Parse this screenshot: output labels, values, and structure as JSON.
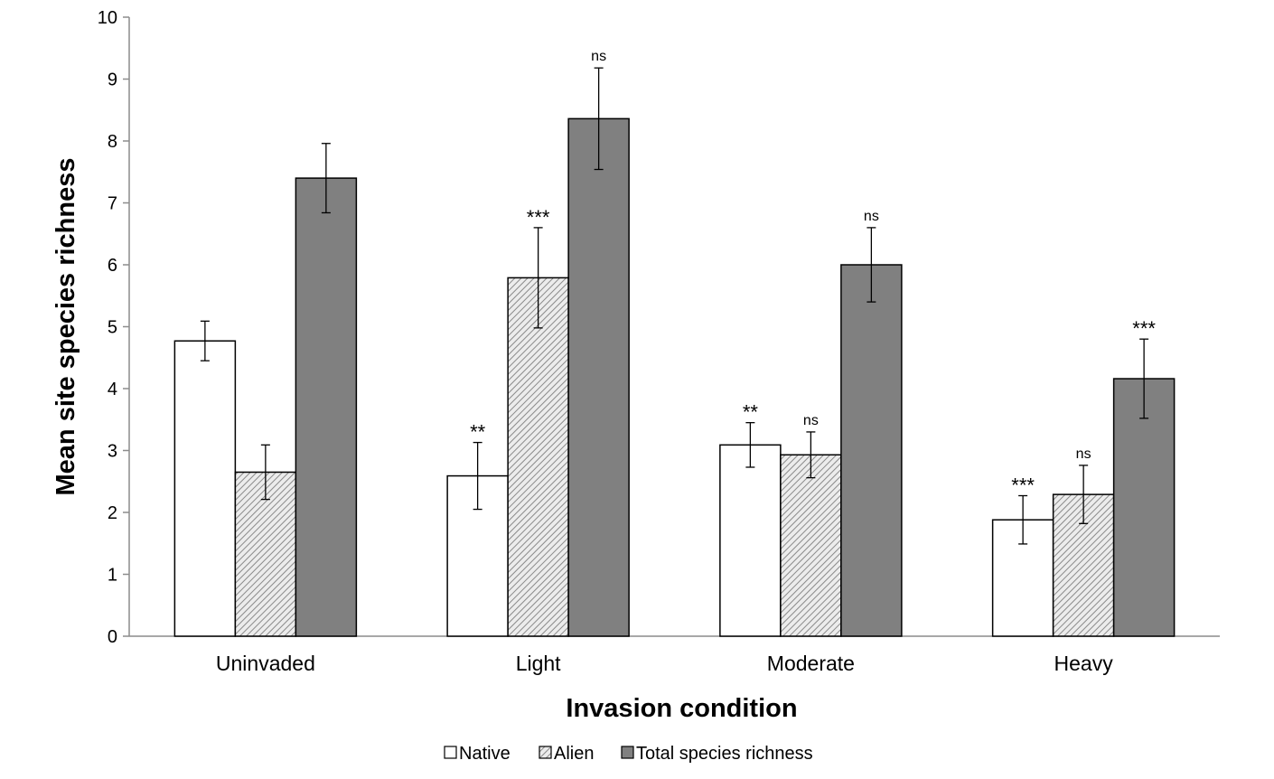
{
  "chart_data": {
    "type": "bar",
    "title": "",
    "xlabel": "Invasion condition",
    "ylabel": "Mean site species richness",
    "ylim": [
      0,
      10
    ],
    "yticks": [
      0,
      1,
      2,
      3,
      4,
      5,
      6,
      7,
      8,
      9,
      10
    ],
    "categories": [
      "Uninvaded",
      "Light",
      "Moderate",
      "Heavy"
    ],
    "series": [
      {
        "name": "Native",
        "color": "#ffffff",
        "pattern": "none",
        "values": [
          4.77,
          2.59,
          3.09,
          1.88
        ],
        "error": [
          0.32,
          0.54,
          0.36,
          0.39
        ],
        "significance": [
          "",
          "**",
          "**",
          "***"
        ]
      },
      {
        "name": "Alien",
        "color": "#d9d9d9",
        "pattern": "diagonal-hatch",
        "values": [
          2.65,
          5.79,
          2.93,
          2.29
        ],
        "error": [
          0.44,
          0.81,
          0.37,
          0.47
        ],
        "significance": [
          "",
          "***",
          "ns",
          "ns"
        ]
      },
      {
        "name": "Total species richness",
        "color": "#808080",
        "pattern": "none",
        "values": [
          7.4,
          8.36,
          6.0,
          4.16
        ],
        "error": [
          0.56,
          0.82,
          0.6,
          0.64
        ],
        "significance": [
          "",
          "ns",
          "ns",
          "***"
        ]
      }
    ],
    "grid": false,
    "legend": {
      "position": "bottom",
      "entries": [
        "Native",
        "Alien",
        "Total species richness"
      ]
    }
  }
}
